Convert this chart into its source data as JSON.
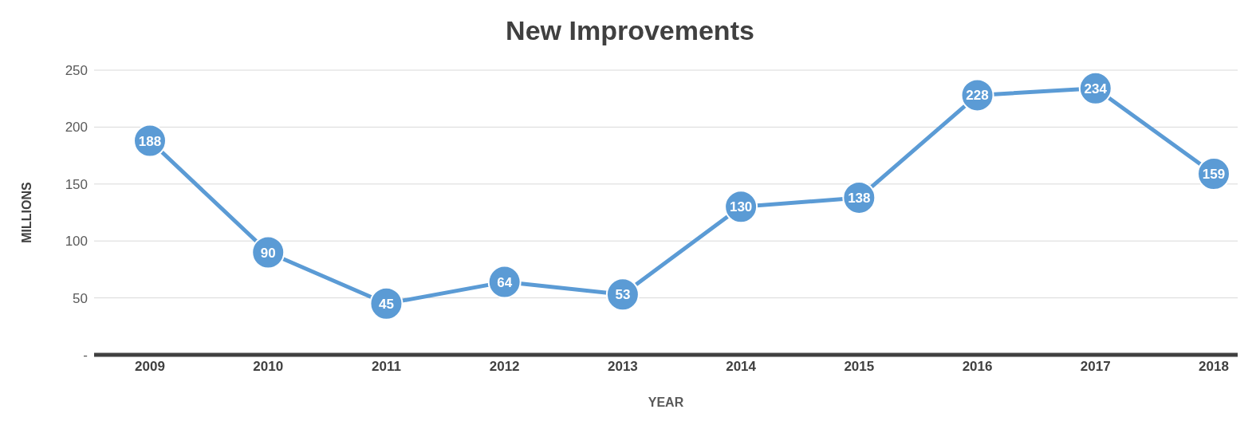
{
  "chart_data": {
    "type": "line",
    "title": "New Improvements",
    "xlabel": "YEAR",
    "ylabel": "MILLIONS",
    "categories": [
      "2009",
      "2010",
      "2011",
      "2012",
      "2013",
      "2014",
      "2015",
      "2016",
      "2017",
      "2018"
    ],
    "series": [
      {
        "color": "#5b9bd5",
        "values": [
          188,
          90,
          45,
          64,
          53,
          130,
          138,
          228,
          234,
          159
        ]
      }
    ],
    "ylim": [
      0,
      250
    ],
    "yticks": [
      {
        "value": 0,
        "label": "-"
      },
      50,
      100,
      150,
      200,
      250
    ],
    "grid": "y",
    "marker": "circle",
    "line_style": "solid",
    "data_labels": true
  }
}
